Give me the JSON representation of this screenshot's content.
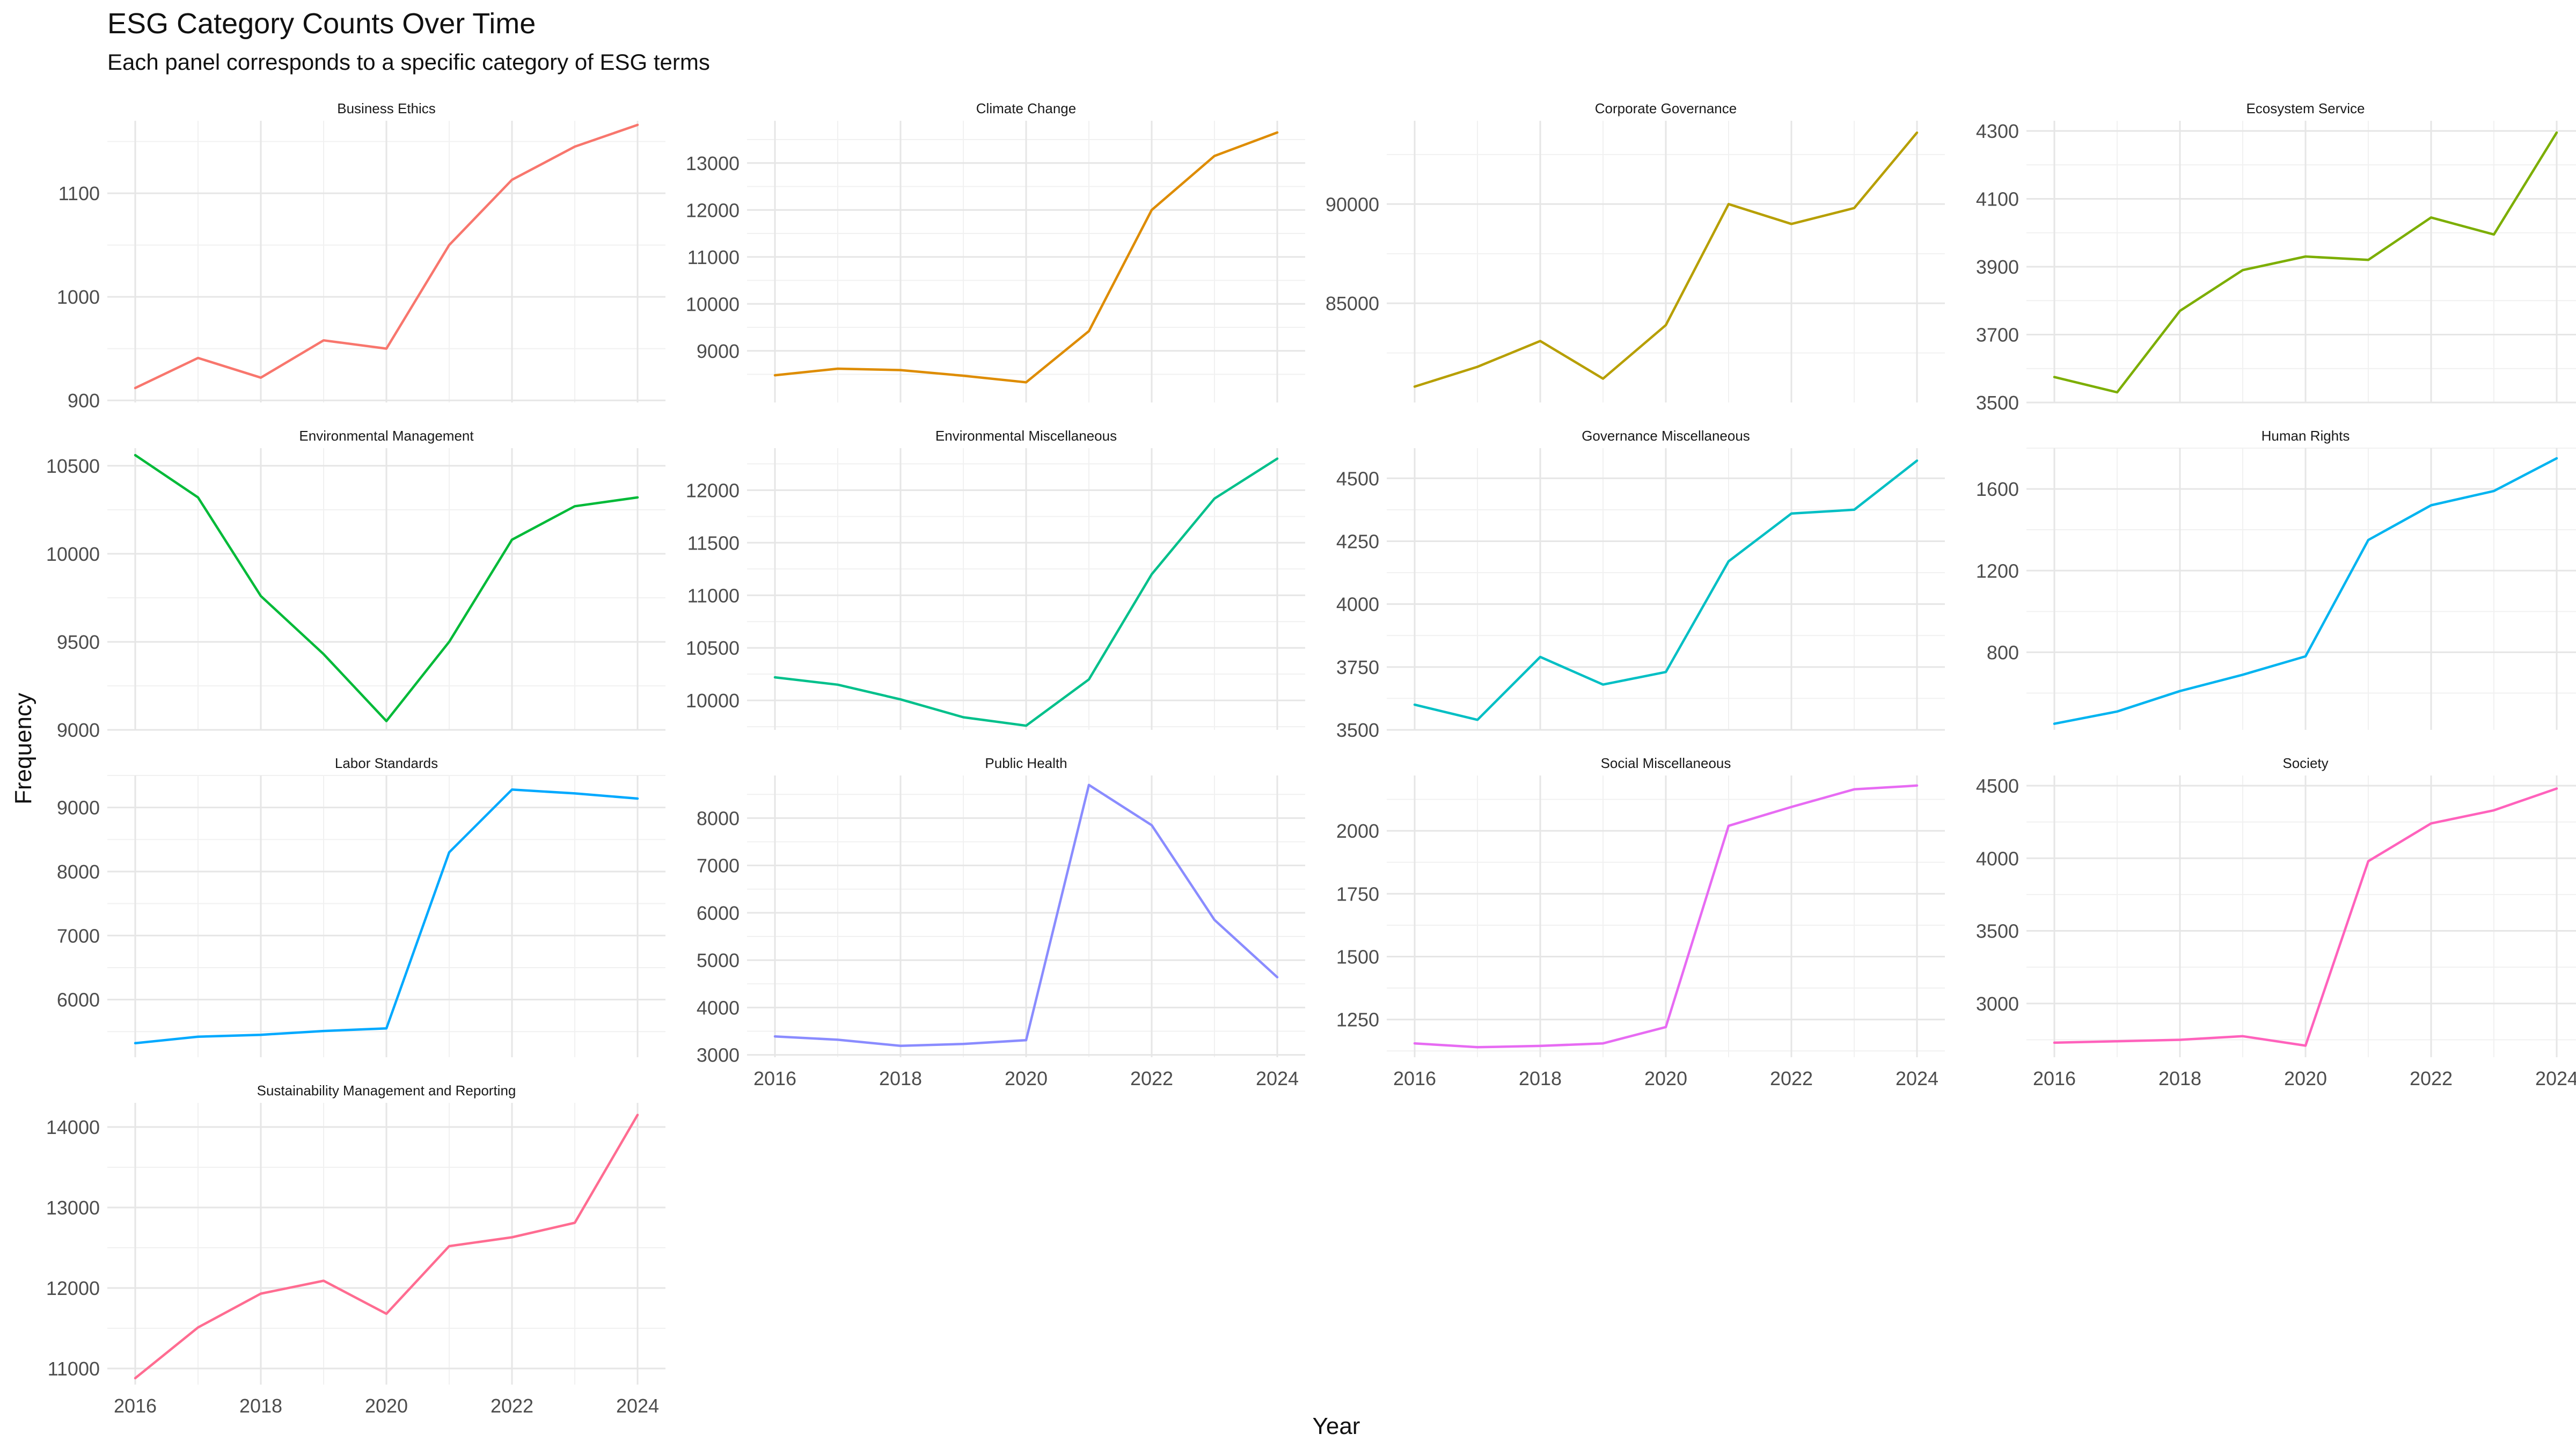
{
  "chart_data": {
    "type": "line",
    "title": "ESG Category Counts Over Time",
    "subtitle": "Each panel corresponds to a specific category of ESG terms",
    "xlabel": "Year",
    "ylabel": "Frequency",
    "x": [
      2016,
      2017,
      2018,
      2019,
      2020,
      2021,
      2022,
      2023,
      2024
    ],
    "x_ticks": [
      2016,
      2018,
      2020,
      2022,
      2024
    ],
    "grid": true,
    "legend": "none",
    "panels": [
      {
        "name": "Business Ethics",
        "color": "#F8766D",
        "values": [
          912,
          941,
          922,
          958,
          950,
          1050,
          1113,
          1145,
          1166
        ],
        "ylim": [
          898,
          1170
        ],
        "yticks": [
          900,
          1000,
          1100
        ]
      },
      {
        "name": "Climate Change",
        "color": "#DE8C00",
        "values": [
          8480,
          8620,
          8590,
          8470,
          8330,
          9420,
          12000,
          13150,
          13650
        ],
        "ylim": [
          7900,
          13900
        ],
        "yticks": [
          9000,
          10000,
          11000,
          12000,
          13000
        ]
      },
      {
        "name": "Corporate Governance",
        "color": "#B79F00",
        "values": [
          80800,
          81800,
          83100,
          81200,
          83900,
          90000,
          89000,
          89800,
          93600
        ],
        "ylim": [
          80000,
          94200
        ],
        "yticks": [
          85000,
          90000
        ]
      },
      {
        "name": "Ecosystem Service",
        "color": "#7CAE00",
        "values": [
          3575,
          3530,
          3770,
          3890,
          3930,
          3920,
          4045,
          3995,
          4295
        ],
        "ylim": [
          3500,
          4330
        ],
        "yticks": [
          3500,
          3700,
          3900,
          4100,
          4300
        ]
      },
      {
        "name": "Environmental Management",
        "color": "#00BA38",
        "values": [
          10560,
          10320,
          9760,
          9430,
          9050,
          9500,
          10080,
          10270,
          10320
        ],
        "ylim": [
          9000,
          10600
        ],
        "yticks": [
          9000,
          9500,
          10000,
          10500
        ]
      },
      {
        "name": "Environmental Miscellaneous",
        "color": "#00C08B",
        "values": [
          10220,
          10150,
          10010,
          9840,
          9760,
          10200,
          11200,
          11920,
          12300
        ],
        "ylim": [
          9720,
          12400
        ],
        "yticks": [
          10000,
          10500,
          11000,
          11500,
          12000
        ]
      },
      {
        "name": "Governance Miscellaneous",
        "color": "#00BFC4",
        "values": [
          3600,
          3540,
          3790,
          3680,
          3730,
          4170,
          4360,
          4375,
          4570
        ],
        "ylim": [
          3500,
          4620
        ],
        "yticks": [
          3500,
          3750,
          4000,
          4250,
          4500
        ]
      },
      {
        "name": "Human Rights",
        "color": "#00B4F0",
        "values": [
          450,
          510,
          610,
          690,
          780,
          1350,
          1520,
          1590,
          1750
        ],
        "ylim": [
          420,
          1800
        ],
        "yticks": [
          800,
          1200,
          1600
        ]
      },
      {
        "name": "Labor Standards",
        "color": "#00A9FF",
        "values": [
          5320,
          5420,
          5450,
          5510,
          5550,
          8300,
          9280,
          9220,
          9140
        ],
        "ylim": [
          5100,
          9500
        ],
        "yticks": [
          6000,
          7000,
          8000,
          9000
        ]
      },
      {
        "name": "Public Health",
        "color": "#8A8CFF",
        "values": [
          3390,
          3320,
          3190,
          3230,
          3310,
          8700,
          7850,
          5850,
          4640
        ],
        "ylim": [
          2950,
          8900
        ],
        "yticks": [
          3000,
          4000,
          5000,
          6000,
          7000,
          8000
        ]
      },
      {
        "name": "Social Miscellaneous",
        "color": "#E76BF3",
        "values": [
          1155,
          1140,
          1145,
          1155,
          1220,
          2020,
          2095,
          2165,
          2180
        ],
        "ylim": [
          1100,
          2220
        ],
        "yticks": [
          1250,
          1500,
          1750,
          2000
        ]
      },
      {
        "name": "Society",
        "color": "#FF62BC",
        "values": [
          2730,
          2740,
          2750,
          2775,
          2710,
          3980,
          4240,
          4330,
          4480
        ],
        "ylim": [
          2630,
          4570
        ],
        "yticks": [
          3000,
          3500,
          4000,
          4500
        ]
      },
      {
        "name": "Sustainability Management and Reporting",
        "color": "#FF6C91",
        "values": [
          10880,
          11510,
          11930,
          12090,
          11680,
          12520,
          12630,
          12810,
          14150
        ],
        "ylim": [
          10800,
          14300
        ],
        "yticks": [
          11000,
          12000,
          13000,
          14000
        ]
      }
    ]
  }
}
